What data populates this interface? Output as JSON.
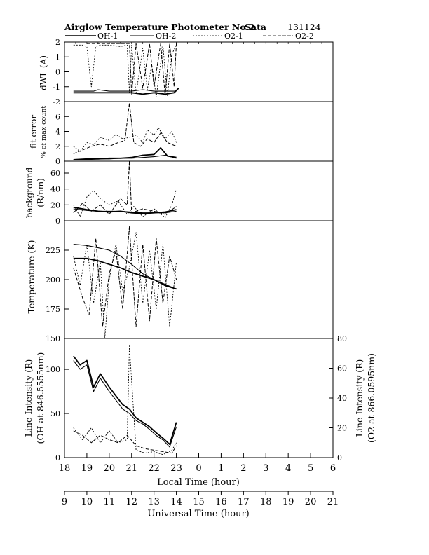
{
  "header": {
    "title": "Airglow Temperature Photometer No.2",
    "site": "Sata",
    "date": "131124"
  },
  "legend": [
    "OH-1",
    "OH-2",
    "O2-1",
    "O2-2"
  ],
  "axes": {
    "local_time_label": "Local Time (hour)",
    "universal_time_label": "Universal Time (hour)",
    "local_ticks": [
      "18",
      "19",
      "20",
      "21",
      "22",
      "23",
      "0",
      "1",
      "2",
      "3",
      "4",
      "5",
      "6"
    ],
    "ut_ticks": [
      "9",
      "10",
      "11",
      "12",
      "13",
      "14",
      "15",
      "16",
      "17",
      "18",
      "19",
      "20",
      "21"
    ]
  },
  "panels": {
    "dwl": {
      "label": "dWL (A)",
      "ticks": [
        "2",
        "1",
        "0",
        "-1",
        "-2"
      ]
    },
    "fit": {
      "label1": "fit error",
      "label2": "% of max count",
      "ticks": [
        "6",
        "4",
        "2",
        "0"
      ]
    },
    "bg": {
      "label1": "background",
      "label2": "(R/nm)",
      "ticks": [
        "60",
        "40",
        "20",
        "0"
      ]
    },
    "temp": {
      "label": "Temperature (K)",
      "ticks": [
        "225",
        "200",
        "175",
        "150"
      ]
    },
    "int": {
      "left_label1": "Line Intensity (R)",
      "left_label2": "(OH at 846.5555nm)",
      "right_label1": "Line Intensity (R)",
      "right_label2": "(O2 at 866.0595nm)",
      "left_ticks": [
        "100",
        "50",
        "0"
      ],
      "right_ticks": [
        "80",
        "60",
        "40",
        "20",
        "0"
      ]
    }
  },
  "chart_data": {
    "type": "line",
    "x_label": "Local Time (hour)",
    "x_range": [
      18,
      30
    ],
    "panels": [
      {
        "id": "dwl",
        "ylabel": "dWL (A)",
        "ylim": [
          -2,
          2
        ],
        "series": [
          {
            "name": "OH-1",
            "x": [
              18.4,
              19.0,
              19.5,
              20.0,
              20.5,
              21.0,
              21.5,
              22.0,
              22.5,
              22.9,
              23.1
            ],
            "y": [
              -1.4,
              -1.4,
              -1.4,
              -1.4,
              -1.4,
              -1.4,
              -1.5,
              -1.4,
              -1.5,
              -1.4,
              -1.1
            ]
          },
          {
            "name": "OH-2",
            "x": [
              18.4,
              19.0,
              19.3,
              19.5,
              20.0,
              20.5,
              21.0,
              21.5,
              22.0,
              22.5,
              23.0
            ],
            "y": [
              -1.3,
              -1.3,
              -1.3,
              -1.2,
              -1.3,
              -1.3,
              -1.3,
              -1.2,
              -1.3,
              -1.3,
              -1.3
            ]
          },
          {
            "name": "O2-1",
            "x": [
              18.4,
              18.8,
              19.0,
              19.2,
              19.4,
              19.6,
              20.0,
              20.5,
              20.8,
              20.9,
              21.0,
              21.2,
              21.5,
              21.7,
              21.9,
              22.1,
              22.4,
              22.6,
              22.8,
              23.0
            ],
            "y": [
              1.8,
              1.8,
              1.7,
              -1.0,
              1.7,
              1.8,
              1.8,
              1.7,
              1.8,
              -1.4,
              1.8,
              -1.5,
              1.6,
              -1.2,
              0.5,
              -1.7,
              1.8,
              -1.6,
              1.2,
              1.8
            ]
          },
          {
            "name": "O2-2",
            "x": [
              19.0,
              19.5,
              20.0,
              20.5,
              20.9,
              21.0,
              21.2,
              21.5,
              21.8,
              22.0,
              22.3,
              22.5,
              22.7,
              22.9,
              23.0
            ],
            "y": [
              1.9,
              1.9,
              1.9,
              1.9,
              1.9,
              -1.5,
              1.9,
              -1.1,
              1.9,
              -1.0,
              1.9,
              -1.6,
              1.9,
              -1.0,
              1.9
            ]
          }
        ]
      },
      {
        "id": "fit",
        "ylabel": "fit error % of max count",
        "ylim": [
          0,
          8
        ],
        "series": [
          {
            "name": "OH-1",
            "x": [
              18.4,
              19.0,
              19.5,
              20.0,
              20.5,
              21.0,
              21.5,
              22.0,
              22.3,
              22.6,
              23.0
            ],
            "y": [
              0.2,
              0.3,
              0.3,
              0.4,
              0.4,
              0.5,
              0.8,
              0.9,
              1.8,
              0.7,
              0.5
            ]
          },
          {
            "name": "OH-2",
            "x": [
              18.4,
              19.0,
              19.5,
              20.0,
              20.5,
              21.0,
              21.5,
              22.0,
              22.5,
              23.0
            ],
            "y": [
              0.2,
              0.2,
              0.3,
              0.3,
              0.4,
              0.4,
              0.5,
              0.6,
              0.8,
              0.4
            ]
          },
          {
            "name": "O2-1",
            "x": [
              18.4,
              18.7,
              19.0,
              19.3,
              19.6,
              20.0,
              20.3,
              20.6,
              20.9,
              21.2,
              21.5,
              21.7,
              22.0,
              22.2,
              22.5,
              22.8,
              23.0
            ],
            "y": [
              2.0,
              1.3,
              2.5,
              2.2,
              3.2,
              2.8,
              3.6,
              3.0,
              3.2,
              3.5,
              2.5,
              4.2,
              3.5,
              4.5,
              3.0,
              4.0,
              2.5
            ]
          },
          {
            "name": "O2-2",
            "x": [
              18.4,
              18.8,
              19.2,
              19.6,
              20.0,
              20.4,
              20.7,
              20.9,
              21.1,
              21.4,
              21.7,
              22.0,
              22.3,
              22.6,
              23.0
            ],
            "y": [
              1.0,
              1.5,
              2.0,
              2.3,
              2.0,
              2.5,
              2.8,
              7.8,
              2.5,
              2.0,
              3.0,
              2.5,
              3.8,
              2.5,
              2.0
            ]
          }
        ]
      },
      {
        "id": "background",
        "ylabel": "background (R/nm)",
        "ylim": [
          0,
          75
        ],
        "series": [
          {
            "name": "OH-1",
            "x": [
              18.4,
              19.0,
              19.5,
              20.0,
              20.5,
              21.0,
              21.5,
              22.0,
              22.5,
              23.0
            ],
            "y": [
              17,
              14,
              12,
              11,
              12,
              10,
              9,
              10,
              11,
              14
            ]
          },
          {
            "name": "OH-2",
            "x": [
              18.4,
              19.0,
              19.5,
              20.0,
              20.5,
              21.0,
              21.5,
              22.0,
              22.5,
              23.0
            ],
            "y": [
              15,
              13,
              12,
              12,
              12,
              11,
              10,
              10,
              10,
              12
            ]
          },
          {
            "name": "O2-1",
            "x": [
              18.4,
              18.7,
              19.0,
              19.3,
              19.6,
              20.0,
              20.4,
              20.8,
              21.1,
              21.5,
              22.0,
              22.5,
              22.8,
              23.0
            ],
            "y": [
              20,
              5,
              30,
              38,
              28,
              20,
              25,
              8,
              18,
              5,
              15,
              4,
              20,
              40
            ]
          },
          {
            "name": "O2-2",
            "x": [
              18.4,
              18.8,
              19.2,
              19.6,
              20.0,
              20.5,
              20.8,
              20.9,
              21.0,
              21.5,
              22.0,
              22.5,
              23.0
            ],
            "y": [
              10,
              22,
              12,
              20,
              8,
              28,
              20,
              75,
              10,
              15,
              12,
              8,
              18
            ]
          }
        ]
      },
      {
        "id": "temperature",
        "ylabel": "Temperature (K)",
        "ylim": [
          150,
          250
        ],
        "series": [
          {
            "name": "OH-1",
            "x": [
              18.4,
              19.0,
              19.5,
              20.0,
              20.5,
              21.0,
              21.5,
              22.0,
              22.5,
              23.0
            ],
            "y": [
              218,
              218,
              216,
              213,
              210,
              206,
              203,
              200,
              195,
              192
            ]
          },
          {
            "name": "OH-2",
            "x": [
              18.4,
              19.0,
              19.5,
              20.0,
              20.5,
              21.0,
              21.5,
              22.0,
              22.5,
              23.0
            ],
            "y": [
              230,
              229,
              227,
              225,
              220,
              213,
              205,
              200,
              196,
              192
            ]
          },
          {
            "name": "O2-1",
            "x": [
              18.4,
              18.7,
              19.0,
              19.3,
              19.6,
              19.8,
              20.0,
              20.3,
              20.6,
              20.9,
              21.2,
              21.5,
              21.8,
              22.1,
              22.4,
              22.7,
              23.0
            ],
            "y": [
              220,
              195,
              230,
              180,
              215,
              150,
              200,
              230,
              190,
              210,
              240,
              180,
              225,
              175,
              230,
              160,
              215
            ]
          },
          {
            "name": "O2-2",
            "x": [
              18.4,
              18.8,
              19.1,
              19.4,
              19.7,
              20.0,
              20.3,
              20.6,
              20.9,
              21.2,
              21.5,
              21.8,
              22.1,
              22.4,
              22.7,
              23.0
            ],
            "y": [
              210,
              185,
              170,
              235,
              160,
              205,
              225,
              175,
              245,
              160,
              230,
              165,
              235,
              180,
              220,
              200
            ]
          }
        ]
      },
      {
        "id": "intensity",
        "ylabel": "Line Intensity (R) (OH at 846.5555nm)",
        "ylim": [
          0,
          135
        ],
        "y2label": "Line Intensity (R) (O2 at 866.0595nm)",
        "y2lim": [
          0,
          80
        ],
        "series": [
          {
            "name": "OH-1",
            "axis": "left",
            "x": [
              18.4,
              18.7,
              19.0,
              19.3,
              19.6,
              20.0,
              20.3,
              20.6,
              20.9,
              21.2,
              21.5,
              21.8,
              22.1,
              22.4,
              22.7,
              23.0
            ],
            "y": [
              115,
              105,
              110,
              80,
              95,
              80,
              70,
              60,
              55,
              45,
              40,
              35,
              28,
              22,
              15,
              40
            ]
          },
          {
            "name": "OH-2",
            "axis": "left",
            "x": [
              18.4,
              18.7,
              19.0,
              19.3,
              19.6,
              20.0,
              20.3,
              20.6,
              20.9,
              21.2,
              21.5,
              21.8,
              22.1,
              22.4,
              22.7,
              23.0
            ],
            "y": [
              110,
              100,
              105,
              75,
              90,
              75,
              65,
              55,
              50,
              42,
              38,
              32,
              25,
              20,
              12,
              35
            ]
          },
          {
            "name": "O2-1",
            "axis": "right",
            "x": [
              18.4,
              18.8,
              19.2,
              19.6,
              20.0,
              20.4,
              20.8,
              20.9,
              21.2,
              21.6,
              22.0,
              22.4,
              22.8,
              23.0
            ],
            "y": [
              20,
              12,
              20,
              10,
              18,
              10,
              12,
              75,
              5,
              3,
              4,
              2,
              5,
              10
            ]
          },
          {
            "name": "O2-2",
            "axis": "right",
            "x": [
              18.4,
              18.8,
              19.2,
              19.6,
              20.0,
              20.4,
              20.8,
              21.2,
              21.6,
              22.0,
              22.4,
              22.8,
              23.0
            ],
            "y": [
              18,
              15,
              10,
              15,
              12,
              10,
              15,
              8,
              6,
              5,
              4,
              3,
              8
            ]
          }
        ]
      }
    ]
  }
}
